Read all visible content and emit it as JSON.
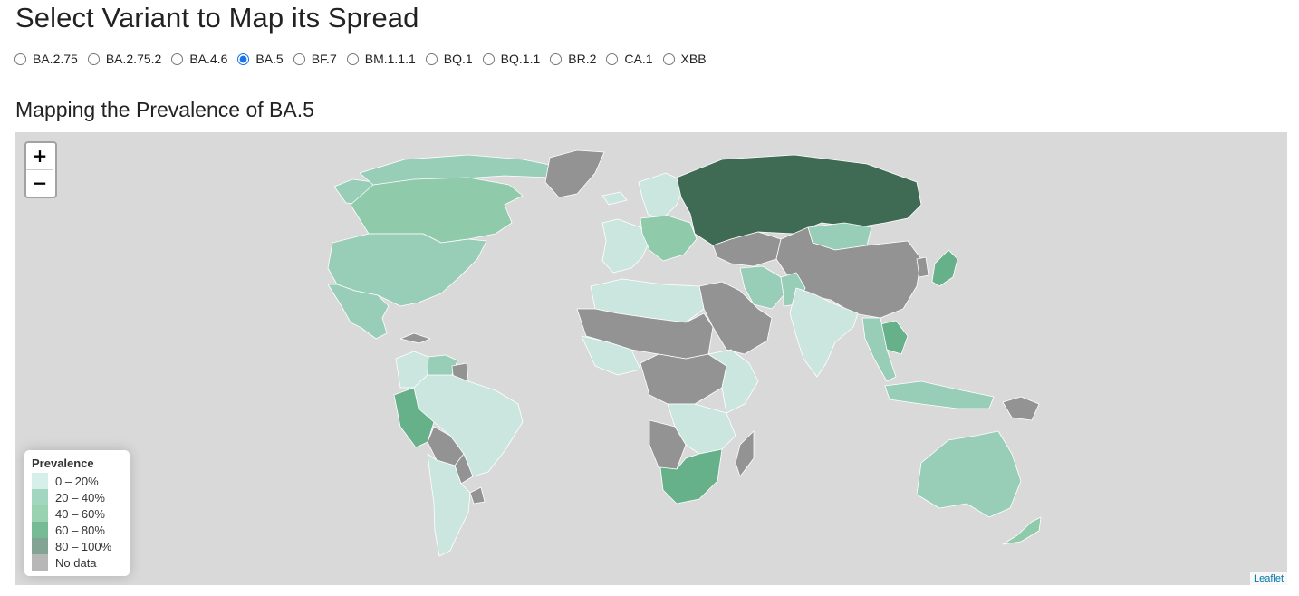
{
  "page": {
    "title": "Select Variant to Map its Spread"
  },
  "variants": {
    "options": [
      "BA.2.75",
      "BA.2.75.2",
      "BA.4.6",
      "BA.5",
      "BF.7",
      "BM.1.1.1",
      "BQ.1",
      "BQ.1.1",
      "BR.2",
      "CA.1",
      "XBB"
    ],
    "selected": "BA.5"
  },
  "map": {
    "title": "Mapping the Prevalence of BA.5",
    "zoom_in_label": "+",
    "zoom_out_label": "−",
    "attribution": "Leaflet",
    "colors": {
      "ocean": "#d9d9d9",
      "no_data": "#939393",
      "p0_20": "#cbe6df",
      "p20_40": "#98cdb8",
      "p40_60": "#8fcaaa",
      "p60_80": "#66b08a",
      "p80_100": "#3f6b55"
    },
    "legend": {
      "title": "Prevalence",
      "items": [
        {
          "label": "0 – 20%",
          "color": "#c4e8e2"
        },
        {
          "label": "20 – 40%",
          "color": "#7cc5a6"
        },
        {
          "label": "40 – 60%",
          "color": "#6cbf8f"
        },
        {
          "label": "60 – 80%",
          "color": "#3d9e6a"
        },
        {
          "label": "80 – 100%",
          "color": "#4e7d66"
        },
        {
          "label": "No data",
          "color": "#999999"
        }
      ]
    },
    "regions": [
      {
        "name": "Canada",
        "band": "p40_60"
      },
      {
        "name": "Canada Arctic",
        "band": "p20_40"
      },
      {
        "name": "Alaska",
        "band": "p20_40"
      },
      {
        "name": "United States",
        "band": "p20_40"
      },
      {
        "name": "Mexico",
        "band": "p20_40"
      },
      {
        "name": "Greenland",
        "band": "no_data"
      },
      {
        "name": "Cuba",
        "band": "no_data"
      },
      {
        "name": "Venezuela",
        "band": "p20_40"
      },
      {
        "name": "Guyana",
        "band": "no_data"
      },
      {
        "name": "Colombia",
        "band": "p0_20"
      },
      {
        "name": "Brazil",
        "band": "p0_20"
      },
      {
        "name": "Peru",
        "band": "p60_80"
      },
      {
        "name": "Bolivia",
        "band": "no_data"
      },
      {
        "name": "Paraguay",
        "band": "no_data"
      },
      {
        "name": "Argentina",
        "band": "p0_20"
      },
      {
        "name": "Uruguay",
        "band": "no_data"
      },
      {
        "name": "Iceland",
        "band": "p0_20"
      },
      {
        "name": "Scandinavia",
        "band": "p0_20"
      },
      {
        "name": "Western Europe",
        "band": "p0_20"
      },
      {
        "name": "Central Europe",
        "band": "p40_60"
      },
      {
        "name": "Russia",
        "band": "p80_100"
      },
      {
        "name": "Kazakhstan",
        "band": "no_data"
      },
      {
        "name": "Mongolia",
        "band": "p20_40"
      },
      {
        "name": "China",
        "band": "no_data"
      },
      {
        "name": "Japan",
        "band": "p60_80"
      },
      {
        "name": "Korea",
        "band": "no_data"
      },
      {
        "name": "Middle East",
        "band": "no_data"
      },
      {
        "name": "Iran",
        "band": "p20_40"
      },
      {
        "name": "Pakistan",
        "band": "p20_40"
      },
      {
        "name": "India",
        "band": "p0_20"
      },
      {
        "name": "Thailand",
        "band": "p60_80"
      },
      {
        "name": "Southeast Asia",
        "band": "p20_40"
      },
      {
        "name": "Indonesia",
        "band": "p20_40"
      },
      {
        "name": "Papua New Guinea",
        "band": "no_data"
      },
      {
        "name": "Australia",
        "band": "p20_40"
      },
      {
        "name": "New Zealand",
        "band": "p40_60"
      },
      {
        "name": "North Africa",
        "band": "p0_20"
      },
      {
        "name": "Sahel",
        "band": "no_data"
      },
      {
        "name": "West Africa",
        "band": "p0_20"
      },
      {
        "name": "Central Africa",
        "band": "no_data"
      },
      {
        "name": "East Africa",
        "band": "p0_20"
      },
      {
        "name": "Southern Africa",
        "band": "p0_20"
      },
      {
        "name": "Namibia",
        "band": "no_data"
      },
      {
        "name": "South Africa",
        "band": "p60_80"
      },
      {
        "name": "Madagascar",
        "band": "no_data"
      }
    ]
  }
}
